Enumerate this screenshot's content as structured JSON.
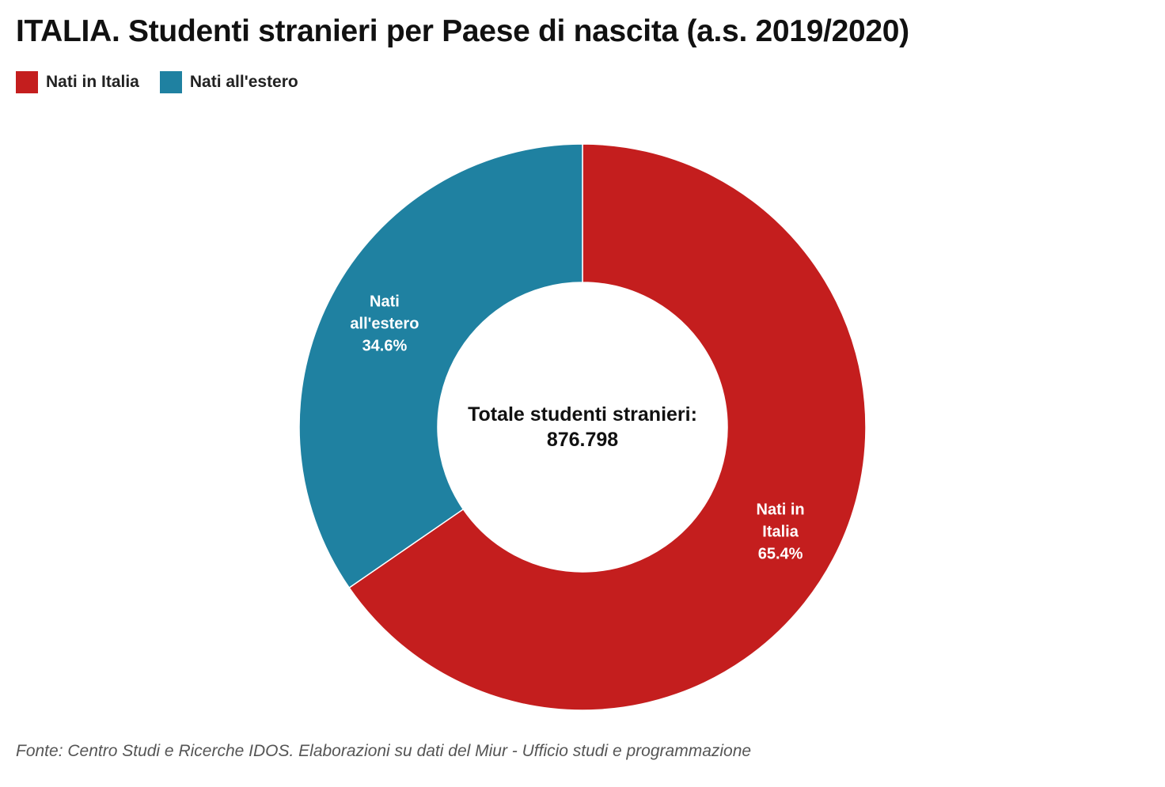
{
  "title": "ITALIA. Studenti stranieri per Paese di nascita (a.s. 2019/2020)",
  "legend": [
    {
      "label": "Nati in Italia",
      "color": "#c41e1e"
    },
    {
      "label": "Nati all'estero",
      "color": "#1f81a1"
    }
  ],
  "chart_data": {
    "type": "pie",
    "subtype": "donut",
    "title": "ITALIA. Studenti stranieri per Paese di nascita (a.s. 2019/2020)",
    "categories": [
      "Nati in Italia",
      "Nati all'estero"
    ],
    "values": [
      65.4,
      34.6
    ],
    "unit": "%",
    "colors": [
      "#c41e1e",
      "#1f81a1"
    ],
    "slice_labels": [
      {
        "lines": [
          "Nati in",
          "Italia",
          "65.4%"
        ]
      },
      {
        "lines": [
          "Nati",
          "all'estero",
          "34.6%"
        ]
      }
    ],
    "center_label": {
      "line1": "Totale studenti stranieri:",
      "line2": "876.798"
    },
    "legend_position": "top-left"
  },
  "source": "Fonte: Centro Studi e Ricerche IDOS. Elaborazioni su dati del Miur - Ufficio studi e programmazione"
}
